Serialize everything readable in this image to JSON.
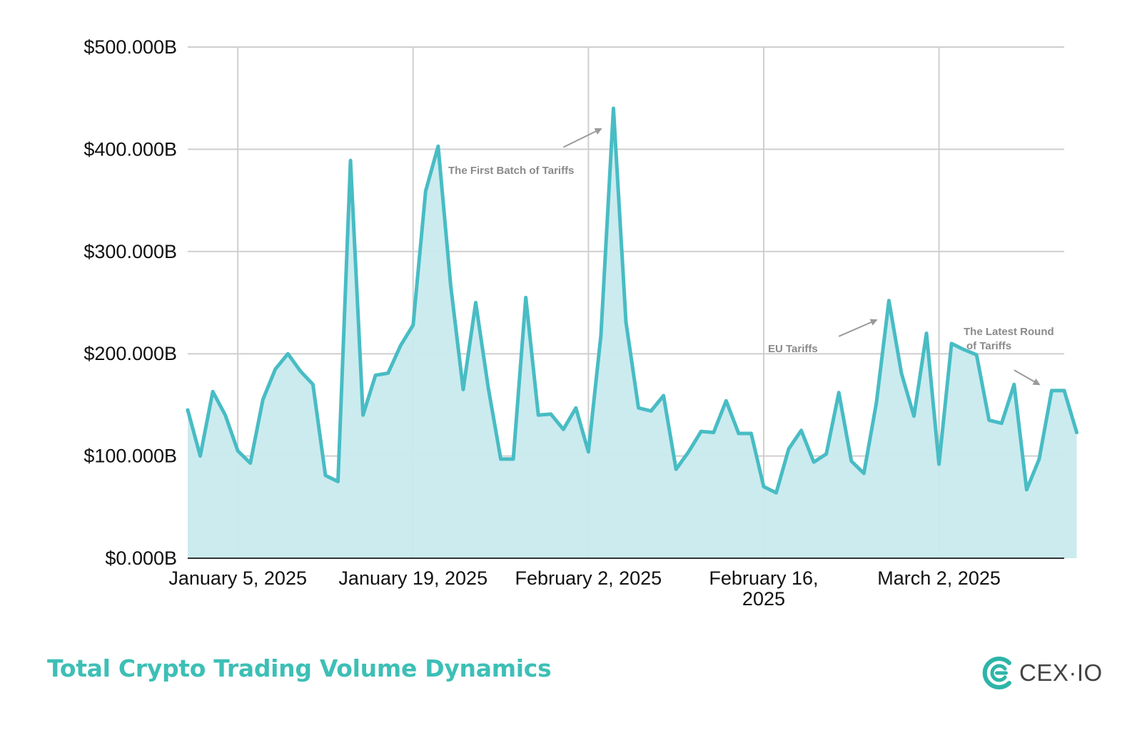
{
  "chart_data": {
    "type": "area",
    "title": "",
    "xlabel": "",
    "ylabel": "",
    "ylim": [
      0,
      500
    ],
    "y_unit": "billion USD",
    "yticks": [
      "$0.000B",
      "$100.000B",
      "$200.000B",
      "$300.000B",
      "$400.000B",
      "$500.000B"
    ],
    "xticks": [
      {
        "date": "2025-01-05",
        "lines": [
          "January 5, 2025"
        ]
      },
      {
        "date": "2025-01-19",
        "lines": [
          "January 19, 2025"
        ]
      },
      {
        "date": "2025-02-02",
        "lines": [
          "February 2, 2025"
        ]
      },
      {
        "date": "2025-02-16",
        "lines": [
          "February 16,",
          "2025"
        ]
      },
      {
        "date": "2025-03-02",
        "lines": [
          "March 2, 2025"
        ]
      }
    ],
    "grid": true,
    "x_start": "2025-01-01",
    "x_end": "2025-03-12",
    "series": [
      {
        "name": "",
        "color": "#48bcc4",
        "fill": "#c8eaee",
        "start_date": "2025-01-01",
        "step_days": 1,
        "values": [
          145,
          100,
          163,
          140,
          105,
          93,
          155,
          185,
          200,
          183,
          170,
          81,
          75,
          389,
          140,
          179,
          181,
          208,
          228,
          359,
          403,
          267,
          165,
          250,
          167,
          97,
          97,
          255,
          140,
          141,
          126,
          147,
          104,
          218,
          440,
          231,
          147,
          144,
          159,
          87,
          104,
          124,
          123,
          154,
          122,
          122,
          70,
          64,
          107,
          125,
          94,
          102,
          162,
          95,
          83,
          152,
          252,
          181,
          139,
          220,
          92,
          210,
          204,
          199,
          135,
          132,
          170,
          67,
          97,
          164,
          164,
          123
        ]
      }
    ],
    "annotations": [
      {
        "lines": [
          "The First Batch of Tariffs"
        ],
        "arrow_from": [
          "2025-01-31",
          402
        ],
        "arrow_to": [
          "2025-02-03",
          420
        ]
      },
      {
        "lines": [
          "EU Tariffs"
        ],
        "arrow_from": [
          "2025-02-22",
          217
        ],
        "arrow_to": [
          "2025-02-25",
          233
        ]
      },
      {
        "lines": [
          "The Latest Round",
          "of Tariffs"
        ],
        "arrow_from": [
          "2025-03-08",
          184
        ],
        "arrow_to": [
          "2025-03-10",
          170
        ]
      }
    ]
  },
  "footer": {
    "title": "Total Crypto Trading Volume Dynamics",
    "title_color": "#3dbfb6",
    "brand": "CEX·IO",
    "brand_color": "#2cb5a8"
  }
}
